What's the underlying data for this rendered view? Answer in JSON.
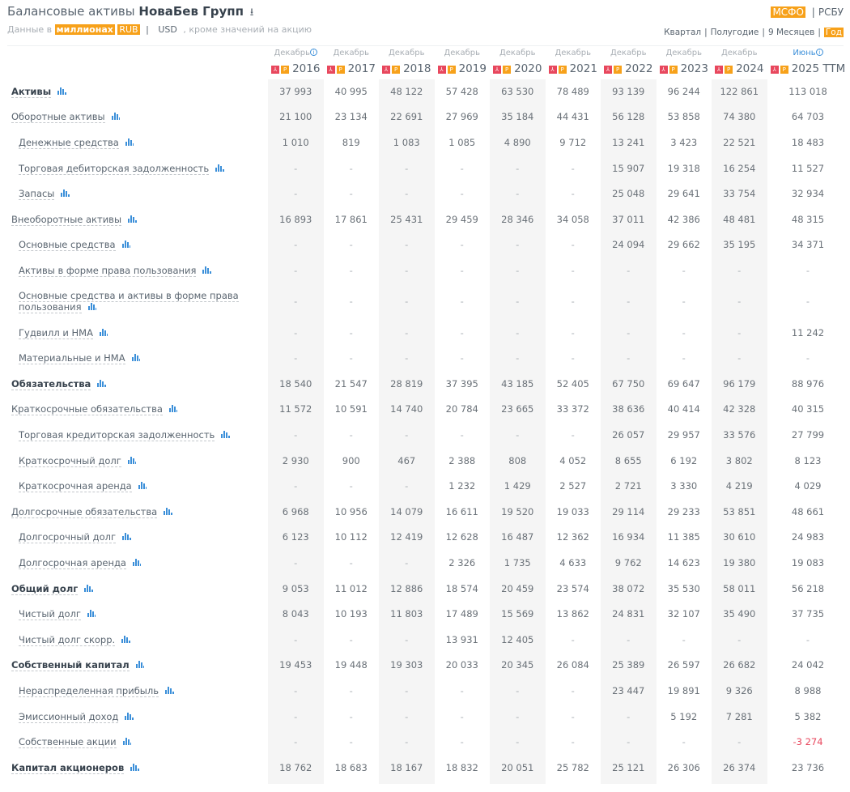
{
  "header": {
    "title_prefix": "Балансовые активы",
    "company": "НоваБев Групп",
    "download_icon": "download-icon",
    "sub_prefix": "Данные в",
    "unit": "миллионах",
    "currency_rub": "RUB",
    "sep": "|",
    "currency_usd": "USD",
    "sub_suffix": ", кроме значений на акцию"
  },
  "standards": {
    "ifrs": "МСФО",
    "sep": "|",
    "ras": "РСБУ",
    "active": "МСФО"
  },
  "periods": {
    "items": [
      "Квартал",
      "Полугодие",
      "9 Месяцев",
      "Год"
    ],
    "active": "Год"
  },
  "colors": {
    "accent": "#f7a11a",
    "pdf": "#e8475d",
    "link": "#3b8fd9",
    "negative": "#e8475d"
  },
  "columns": [
    {
      "month": "Декабрь",
      "year": "2016",
      "info": true
    },
    {
      "month": "Декабрь",
      "year": "2017"
    },
    {
      "month": "Декабрь",
      "year": "2018"
    },
    {
      "month": "Декабрь",
      "year": "2019"
    },
    {
      "month": "Декабрь",
      "year": "2020"
    },
    {
      "month": "Декабрь",
      "year": "2021"
    },
    {
      "month": "Декабрь",
      "year": "2022"
    },
    {
      "month": "Декабрь",
      "year": "2023"
    },
    {
      "month": "Декабрь",
      "year": "2024"
    },
    {
      "month": "Июнь",
      "year": "2025 TTM",
      "info": true
    }
  ],
  "pdf_label": "PDF",
  "report_label": "P",
  "rows": [
    {
      "label": "Активы",
      "level": "bold",
      "values": [
        "37 993",
        "40 995",
        "48 122",
        "57 428",
        "63 530",
        "78 489",
        "93 139",
        "96 244",
        "122 861",
        "113 018"
      ]
    },
    {
      "label": "Оборотные активы",
      "level": "top",
      "values": [
        "21 100",
        "23 134",
        "22 691",
        "27 969",
        "35 184",
        "44 431",
        "56 128",
        "53 858",
        "74 380",
        "64 703"
      ]
    },
    {
      "label": "Денежные средства",
      "level": "sub",
      "values": [
        "1 010",
        "819",
        "1 083",
        "1 085",
        "4 890",
        "9 712",
        "13 241",
        "3 423",
        "22 521",
        "18 483"
      ]
    },
    {
      "label": "Торговая дебиторская задолженность",
      "level": "sub",
      "values": [
        "-",
        "-",
        "-",
        "-",
        "-",
        "-",
        "15 907",
        "19 318",
        "16 254",
        "11 527"
      ]
    },
    {
      "label": "Запасы",
      "level": "sub",
      "values": [
        "-",
        "-",
        "-",
        "-",
        "-",
        "-",
        "25 048",
        "29 641",
        "33 754",
        "32 934"
      ]
    },
    {
      "label": "Внеоборотные активы",
      "level": "top",
      "values": [
        "16 893",
        "17 861",
        "25 431",
        "29 459",
        "28 346",
        "34 058",
        "37 011",
        "42 386",
        "48 481",
        "48 315"
      ]
    },
    {
      "label": "Основные средства",
      "level": "sub",
      "values": [
        "-",
        "-",
        "-",
        "-",
        "-",
        "-",
        "24 094",
        "29 662",
        "35 195",
        "34 371"
      ]
    },
    {
      "label": "Активы в форме права пользования",
      "level": "sub",
      "values": [
        "-",
        "-",
        "-",
        "-",
        "-",
        "-",
        "-",
        "-",
        "-",
        "-"
      ]
    },
    {
      "label": "Основные средства и активы в форме права пользования",
      "level": "sub",
      "tall": true,
      "values": [
        "-",
        "-",
        "-",
        "-",
        "-",
        "-",
        "-",
        "-",
        "-",
        "-"
      ]
    },
    {
      "label": "Гудвилл и НМА",
      "level": "sub",
      "values": [
        "-",
        "-",
        "-",
        "-",
        "-",
        "-",
        "-",
        "-",
        "-",
        "11 242"
      ]
    },
    {
      "label": "Материальные и НМА",
      "level": "sub",
      "values": [
        "-",
        "-",
        "-",
        "-",
        "-",
        "-",
        "-",
        "-",
        "-",
        "-"
      ]
    },
    {
      "label": "Обязательства",
      "level": "bold",
      "values": [
        "18 540",
        "21 547",
        "28 819",
        "37 395",
        "43 185",
        "52 405",
        "67 750",
        "69 647",
        "96 179",
        "88 976"
      ]
    },
    {
      "label": "Краткосрочные обязательства",
      "level": "top",
      "values": [
        "11 572",
        "10 591",
        "14 740",
        "20 784",
        "23 665",
        "33 372",
        "38 636",
        "40 414",
        "42 328",
        "40 315"
      ]
    },
    {
      "label": "Торговая кредиторская задолженность",
      "level": "sub",
      "values": [
        "-",
        "-",
        "-",
        "-",
        "-",
        "-",
        "26 057",
        "29 957",
        "33 576",
        "27 799"
      ]
    },
    {
      "label": "Краткосрочный долг",
      "level": "sub",
      "values": [
        "2 930",
        "900",
        "467",
        "2 388",
        "808",
        "4 052",
        "8 655",
        "6 192",
        "3 802",
        "8 123"
      ]
    },
    {
      "label": "Краткосрочная аренда",
      "level": "sub",
      "values": [
        "-",
        "-",
        "-",
        "1 232",
        "1 429",
        "2 527",
        "2 721",
        "3 330",
        "4 219",
        "4 029"
      ]
    },
    {
      "label": "Долгосрочные обязательства",
      "level": "top",
      "values": [
        "6 968",
        "10 956",
        "14 079",
        "16 611",
        "19 520",
        "19 033",
        "29 114",
        "29 233",
        "53 851",
        "48 661"
      ]
    },
    {
      "label": "Долгосрочный долг",
      "level": "sub",
      "values": [
        "6 123",
        "10 112",
        "12 419",
        "12 628",
        "16 487",
        "12 362",
        "16 934",
        "11 385",
        "30 610",
        "24 983"
      ]
    },
    {
      "label": "Долгосрочная аренда",
      "level": "sub",
      "values": [
        "-",
        "-",
        "-",
        "2 326",
        "1 735",
        "4 633",
        "9 762",
        "14 623",
        "19 380",
        "19 083"
      ]
    },
    {
      "label": "Общий долг",
      "level": "bold",
      "values": [
        "9 053",
        "11 012",
        "12 886",
        "18 574",
        "20 459",
        "23 574",
        "38 072",
        "35 530",
        "58 011",
        "56 218"
      ]
    },
    {
      "label": "Чистый долг",
      "level": "sub",
      "values": [
        "8 043",
        "10 193",
        "11 803",
        "17 489",
        "15 569",
        "13 862",
        "24 831",
        "32 107",
        "35 490",
        "37 735"
      ]
    },
    {
      "label": "Чистый долг скорр.",
      "level": "sub",
      "values": [
        "-",
        "-",
        "-",
        "13 931",
        "12 405",
        "-",
        "-",
        "-",
        "-",
        "-"
      ]
    },
    {
      "label": "Собственный капитал",
      "level": "bold",
      "values": [
        "19 453",
        "19 448",
        "19 303",
        "20 033",
        "20 345",
        "26 084",
        "25 389",
        "26 597",
        "26 682",
        "24 042"
      ]
    },
    {
      "label": "Нераспределенная прибыль",
      "level": "sub",
      "values": [
        "-",
        "-",
        "-",
        "-",
        "-",
        "-",
        "23 447",
        "19 891",
        "9 326",
        "8 988"
      ]
    },
    {
      "label": "Эмиссионный доход",
      "level": "sub",
      "values": [
        "-",
        "-",
        "-",
        "-",
        "-",
        "-",
        "-",
        "5 192",
        "7 281",
        "5 382"
      ]
    },
    {
      "label": "Собственные акции",
      "level": "sub",
      "values": [
        "-",
        "-",
        "-",
        "-",
        "-",
        "-",
        "-",
        "-",
        "-",
        "-3 274"
      ]
    },
    {
      "label": "Капитал акционеров",
      "level": "bold",
      "values": [
        "18 762",
        "18 683",
        "18 167",
        "18 832",
        "20 051",
        "25 782",
        "25 121",
        "26 306",
        "26 374",
        "23 736"
      ]
    }
  ]
}
